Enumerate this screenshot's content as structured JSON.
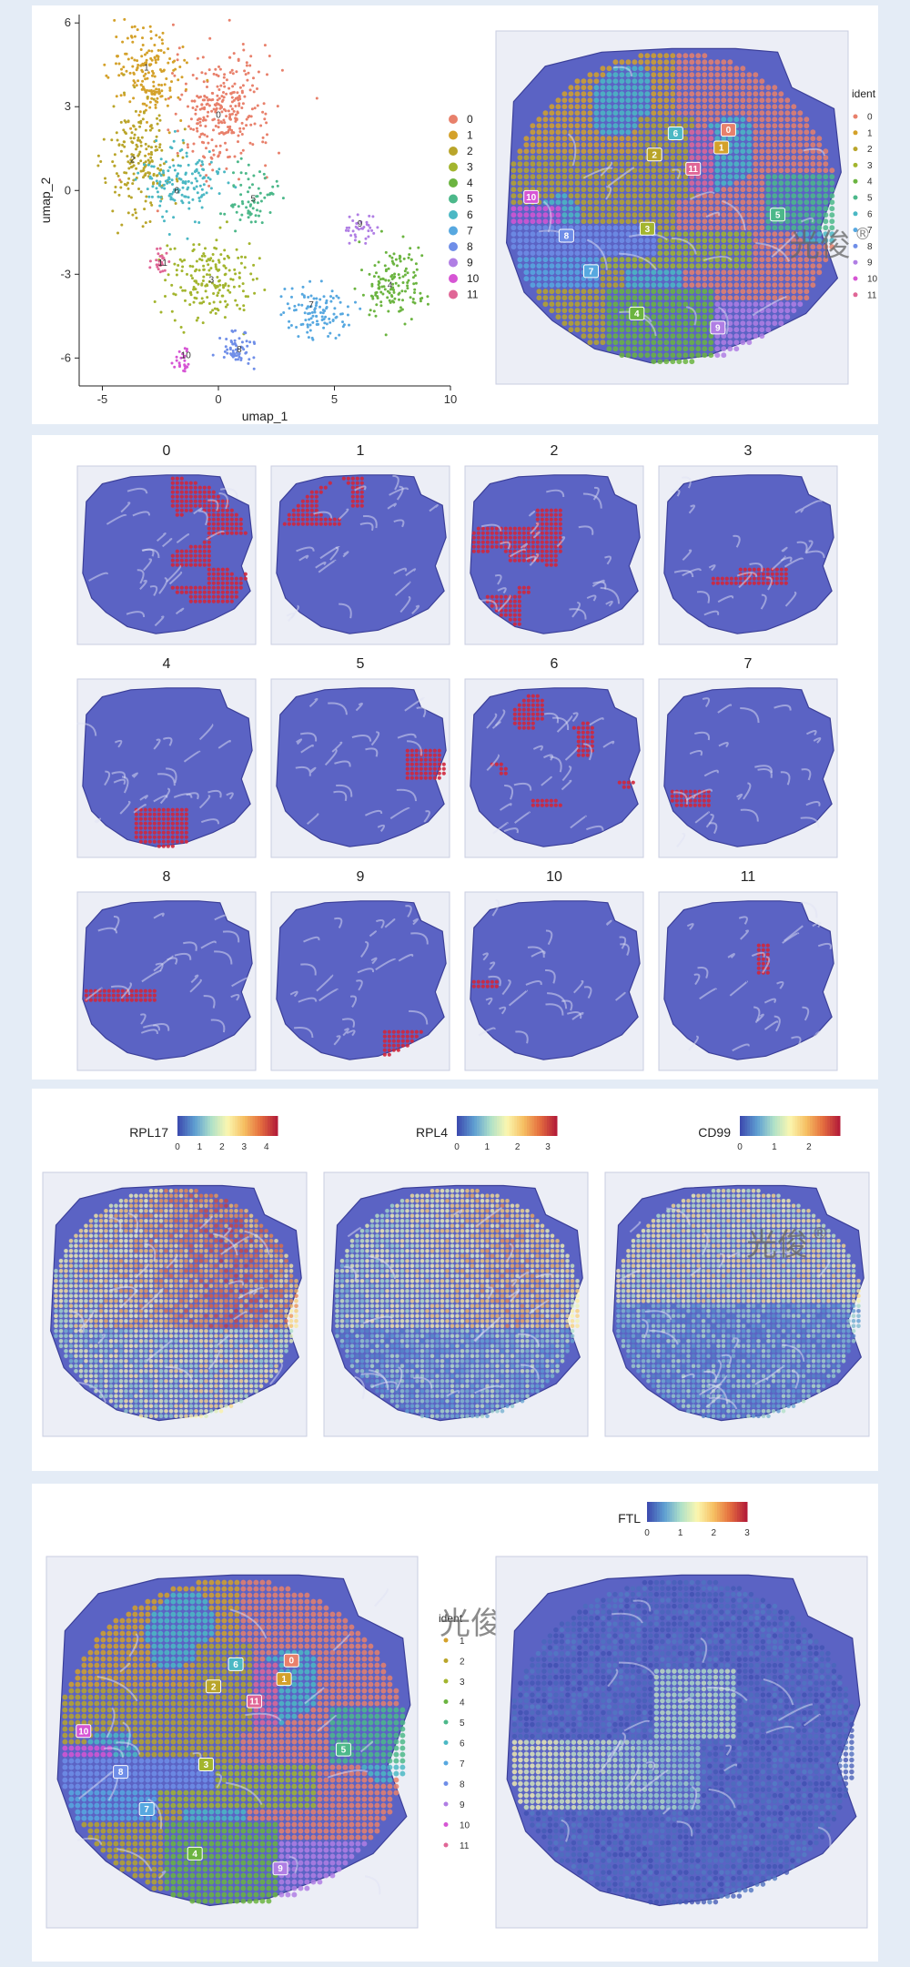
{
  "chart_data": [
    {
      "type": "scatter",
      "xlabel": "umap_1",
      "ylabel": "umap_2",
      "xlim": [
        -6,
        10
      ],
      "ylim": [
        -7,
        6.3
      ],
      "xticks": [
        -5,
        0,
        5,
        10
      ],
      "yticks": [
        -6,
        -3,
        0,
        3,
        6
      ],
      "legend_placement": "right",
      "clusters": [
        {
          "name": "0",
          "color": "#e8806b",
          "cx": 0.2,
          "cy": 2.9,
          "sx": 1.3,
          "sy": 1.3,
          "n": 300
        },
        {
          "name": "1",
          "color": "#d4a12a",
          "cx": -3.0,
          "cy": 4.1,
          "sx": 1.0,
          "sy": 1.1,
          "n": 190
        },
        {
          "name": "2",
          "color": "#b9a52a",
          "cx": -3.4,
          "cy": 1.2,
          "sx": 0.9,
          "sy": 1.3,
          "n": 190
        },
        {
          "name": "3",
          "color": "#a3b52e",
          "cx": -0.4,
          "cy": -3.2,
          "sx": 1.2,
          "sy": 0.9,
          "n": 190
        },
        {
          "name": "4",
          "color": "#6bb440",
          "cx": 7.5,
          "cy": -3.4,
          "sx": 0.9,
          "sy": 0.8,
          "n": 140
        },
        {
          "name": "5",
          "color": "#4cb88a",
          "cx": 1.5,
          "cy": -0.2,
          "sx": 0.6,
          "sy": 0.7,
          "n": 70
        },
        {
          "name": "6",
          "color": "#4bb8c4",
          "cx": -1.6,
          "cy": 0.3,
          "sx": 1.0,
          "sy": 0.8,
          "n": 150
        },
        {
          "name": "7",
          "color": "#57a8e0",
          "cx": 4.2,
          "cy": -4.3,
          "sx": 0.9,
          "sy": 0.6,
          "n": 110
        },
        {
          "name": "8",
          "color": "#6f8ee8",
          "cx": 0.8,
          "cy": -5.7,
          "sx": 0.5,
          "sy": 0.4,
          "n": 60
        },
        {
          "name": "9",
          "color": "#b07ee4",
          "cx": 6.1,
          "cy": -1.4,
          "sx": 0.6,
          "sy": 0.3,
          "n": 35
        },
        {
          "name": "10",
          "color": "#d655d4",
          "cx": -1.5,
          "cy": -6.1,
          "sx": 0.3,
          "sy": 0.3,
          "n": 25
        },
        {
          "name": "11",
          "color": "#e06696",
          "cx": -2.5,
          "cy": -2.6,
          "sx": 0.3,
          "sy": 0.3,
          "n": 25
        }
      ],
      "cluster_labels": [
        {
          "text": "0",
          "x": 0.0,
          "y": 2.6
        },
        {
          "text": "1",
          "x": -3.1,
          "y": 4.3
        },
        {
          "text": "2",
          "x": -3.7,
          "y": 1.0
        },
        {
          "text": "3",
          "x": -0.3,
          "y": -3.3
        },
        {
          "text": "4",
          "x": 7.4,
          "y": -3.5
        },
        {
          "text": "5",
          "x": 1.5,
          "y": -0.4
        },
        {
          "text": "6",
          "x": -1.8,
          "y": -0.1
        },
        {
          "text": "7",
          "x": 4.0,
          "y": -4.2
        },
        {
          "text": "8",
          "x": 0.9,
          "y": -5.8
        },
        {
          "text": "9",
          "x": 6.1,
          "y": -1.3
        },
        {
          "text": "10",
          "x": -1.4,
          "y": -6.0
        },
        {
          "text": "11",
          "x": -2.4,
          "y": -2.7
        }
      ]
    },
    {
      "type": "heatmap",
      "description_kind": "spatial cluster map",
      "legend_title": "ident",
      "legend_labels": [
        "0",
        "1",
        "2",
        "3",
        "4",
        "5",
        "6",
        "7",
        "8",
        "9",
        "10",
        "11"
      ]
    },
    {
      "type": "heatmap",
      "description_kind": "spatial cluster highlight grid",
      "panels": [
        "0",
        "1",
        "2",
        "3",
        "4",
        "5",
        "6",
        "7",
        "8",
        "9",
        "10",
        "11"
      ]
    },
    {
      "type": "heatmap",
      "description_kind": "feature expression",
      "features": [
        {
          "name": "RPL17",
          "ticks": [
            "0",
            "1",
            "2",
            "3",
            "4"
          ],
          "max": 4.5
        },
        {
          "name": "RPL4",
          "ticks": [
            "0",
            "1",
            "2",
            "3"
          ],
          "max": 3.3
        },
        {
          "name": "CD99",
          "ticks": [
            "0",
            "1",
            "2"
          ],
          "max": 2.9
        }
      ]
    },
    {
      "type": "heatmap",
      "description_kind": "spatial cluster map + feature",
      "legend_title": "ident",
      "legend_labels": [
        "1",
        "2",
        "3",
        "4",
        "5",
        "6",
        "7",
        "8",
        "9",
        "10",
        "11"
      ],
      "feature": {
        "name": "FTL",
        "ticks": [
          "0",
          "1",
          "2",
          "3"
        ],
        "max": 3
      }
    }
  ],
  "watermark": {
    "text": "光俊",
    "symbol": "®"
  },
  "colorscale": [
    "#3e4eb0",
    "#5f9fd2",
    "#aee0c8",
    "#fbf7b0",
    "#f6c063",
    "#e5703f",
    "#b51f39"
  ]
}
